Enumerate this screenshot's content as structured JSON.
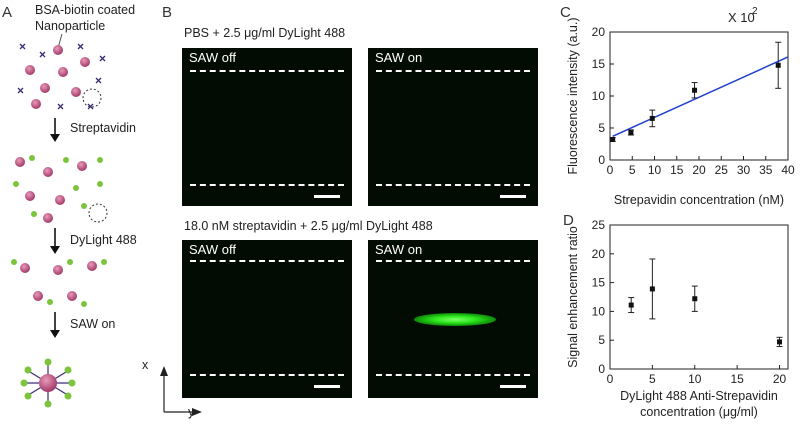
{
  "panel_labels": {
    "a": "A",
    "b": "B",
    "c": "C",
    "d": "D"
  },
  "schematic": {
    "title_line1": "BSA-biotin coated",
    "title_line2": "Nanoparticle",
    "step1": "Streptavidin",
    "step2": "DyLight 488",
    "step3": "SAW on"
  },
  "micrographs": {
    "top_title": "PBS + 2.5 μg/ml DyLight 488",
    "bottom_title": "18.0 nM streptavidin + 2.5 μg/ml DyLight 488",
    "saw_off": "SAW off",
    "saw_on": "SAW on",
    "axis_x": "x",
    "axis_y": "y"
  },
  "chart_data": [
    {
      "type": "scatter",
      "panel": "C",
      "xlabel": "Strepavidin concentration (nM)",
      "ylabel": "Fluorescence intensity (a.u.)",
      "multiplier": "X 10",
      "multiplier_exp": "2",
      "xlim": [
        0,
        40
      ],
      "ylim": [
        0,
        20
      ],
      "xticks": [
        "0",
        "5",
        "10",
        "15",
        "20",
        "25",
        "30",
        "35",
        "40"
      ],
      "yticks": [
        "0",
        "5",
        "10",
        "15",
        "20"
      ],
      "points": [
        {
          "x": 0.6,
          "y": 3.2,
          "err": 0.3
        },
        {
          "x": 4.7,
          "y": 4.3,
          "err": 0.4
        },
        {
          "x": 9.5,
          "y": 6.5,
          "err": 1.3
        },
        {
          "x": 19.0,
          "y": 10.9,
          "err": 1.2
        },
        {
          "x": 37.8,
          "y": 14.8,
          "err": 3.6
        }
      ],
      "fit_line": {
        "x": [
          0.6,
          40
        ],
        "y": [
          3.7,
          16.1
        ],
        "color": "#1f3fd0"
      }
    },
    {
      "type": "scatter",
      "panel": "D",
      "xlabel_line1": "DyLight 488 Anti-Strepavidin",
      "xlabel_line2": "concentration (μg/ml)",
      "ylabel": "Signal enhancement ratio",
      "xlim": [
        0,
        21
      ],
      "ylim": [
        0,
        25
      ],
      "xticks": [
        "0",
        "5",
        "10",
        "15",
        "20"
      ],
      "yticks": [
        "0",
        "5",
        "10",
        "15",
        "20",
        "25"
      ],
      "points": [
        {
          "x": 2.5,
          "y": 11.1,
          "err": 1.3
        },
        {
          "x": 5.0,
          "y": 13.9,
          "err": 5.2
        },
        {
          "x": 10.0,
          "y": 12.2,
          "err": 2.2
        },
        {
          "x": 20.0,
          "y": 4.7,
          "err": 0.8
        }
      ]
    }
  ]
}
